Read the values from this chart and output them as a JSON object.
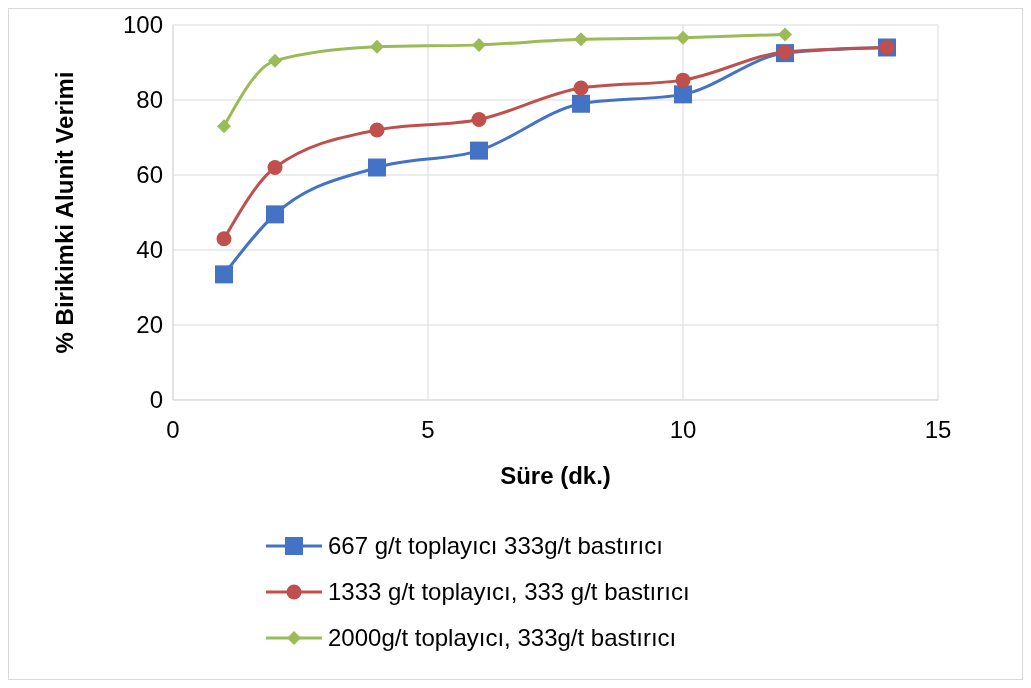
{
  "chart_data": {
    "type": "line",
    "xlabel": "Süre (dk.)",
    "ylabel": "% Birikimki Alunit Verimi",
    "x": [
      1,
      2,
      4,
      6,
      8,
      10,
      12,
      14
    ],
    "xlim": [
      0,
      15
    ],
    "xticks": [
      0,
      5,
      10,
      15
    ],
    "ylim": [
      0,
      100
    ],
    "yticks": [
      0,
      20,
      40,
      60,
      80,
      100
    ],
    "grid": true,
    "legend": "bottom",
    "series": [
      {
        "name": "667 g/t toplayıcı 333g/t bastırıcı",
        "color": "#4472c4",
        "marker": "square",
        "values": [
          33.5,
          49.5,
          62,
          66.5,
          79,
          81.5,
          92.5,
          94
        ]
      },
      {
        "name": "1333 g/t toplayıcı, 333 g/t bastırıcı",
        "color": "#c0504d",
        "marker": "circle",
        "values": [
          43,
          62,
          72,
          74.8,
          83.2,
          85.3,
          92.8,
          94
        ]
      },
      {
        "name": "2000g/t toplayıcı, 333g/t bastırıcı",
        "color": "#9bbb59",
        "marker": "diamond",
        "x": [
          1,
          2,
          4,
          6,
          8,
          10,
          12
        ],
        "values": [
          73,
          90.5,
          94.2,
          94.7,
          96.2,
          96.6,
          97.5
        ]
      }
    ]
  }
}
